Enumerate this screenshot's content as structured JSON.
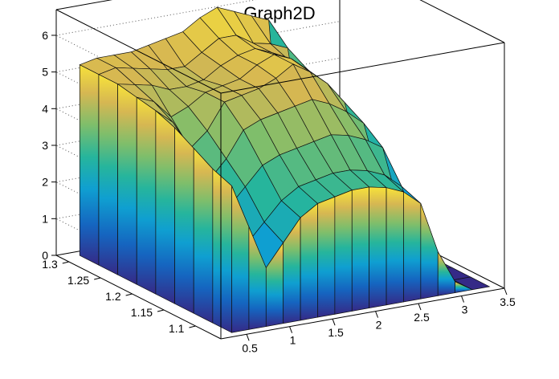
{
  "chart_data": {
    "type": "surface3d",
    "title": "Graph2D",
    "xlabel": "",
    "ylabel": "",
    "zlabel": "",
    "xlim": [
      0.2,
      3.5
    ],
    "ylim": [
      1.06,
      1.32
    ],
    "zlim": [
      0,
      6.7
    ],
    "x_ticks": [
      "0.5",
      "1",
      "1.5",
      "2",
      "2.5",
      "3",
      "3.5"
    ],
    "y_ticks": [
      "1.1",
      "1.15",
      "1.2",
      "1.25",
      "1.3"
    ],
    "z_ticks": [
      "0",
      "1",
      "2",
      "3",
      "4",
      "5",
      "6"
    ],
    "grid": true,
    "palette": [
      "#352a87",
      "#1565c0",
      "#0f9fd1",
      "#26b59c",
      "#7ebe6b",
      "#d6b752",
      "#f7e23a"
    ],
    "surface_z_rows_by_y": [
      {
        "y": 1.31,
        "z": [
          5.2,
          5.3,
          5.3,
          5.3,
          5.4,
          5.5,
          5.6,
          5.9,
          6.1,
          5.9,
          5.7,
          5.5,
          0.0,
          0.0,
          0.0,
          0.0
        ]
      },
      {
        "y": 1.28,
        "z": [
          5.2,
          5.3,
          5.2,
          5.1,
          5.0,
          5.0,
          5.3,
          5.6,
          5.6,
          5.3,
          5.2,
          5.0,
          2.0,
          0.0,
          0.0,
          0.0
        ]
      },
      {
        "y": 1.25,
        "z": [
          5.2,
          5.1,
          5.0,
          4.8,
          4.8,
          4.9,
          5.2,
          5.4,
          5.5,
          5.3,
          5.0,
          4.7,
          2.6,
          1.5,
          0.0,
          0.0
        ]
      },
      {
        "y": 1.22,
        "z": [
          5.1,
          4.9,
          4.4,
          4.6,
          4.9,
          5.0,
          5.1,
          5.4,
          5.6,
          5.4,
          5.0,
          4.5,
          2.6,
          2.0,
          0.0,
          0.0
        ]
      },
      {
        "y": 1.19,
        "z": [
          5.0,
          4.6,
          3.8,
          4.2,
          4.9,
          5.0,
          5.1,
          5.3,
          5.6,
          5.3,
          4.9,
          4.3,
          2.4,
          1.8,
          0.0,
          0.0
        ]
      },
      {
        "y": 1.16,
        "z": [
          4.8,
          4.1,
          3.2,
          3.7,
          4.4,
          4.6,
          4.7,
          4.8,
          4.9,
          4.7,
          4.4,
          4.0,
          2.2,
          1.5,
          0.0,
          0.0
        ]
      },
      {
        "y": 1.13,
        "z": [
          4.5,
          3.6,
          2.7,
          3.2,
          3.7,
          3.9,
          4.0,
          4.1,
          4.2,
          4.1,
          3.9,
          3.6,
          1.8,
          1.0,
          0.0,
          0.0
        ]
      },
      {
        "y": 1.1,
        "z": [
          4.2,
          3.0,
          2.0,
          2.5,
          3.0,
          3.3,
          3.4,
          3.5,
          3.5,
          3.4,
          3.2,
          2.8,
          1.4,
          0.5,
          0.0,
          0.0
        ]
      },
      {
        "y": 1.07,
        "z": [
          4.0,
          2.8,
          1.6,
          2.2,
          2.8,
          3.1,
          3.2,
          3.3,
          3.3,
          3.2,
          3.0,
          2.6,
          1.2,
          0.3,
          0.0,
          0.0
        ]
      }
    ],
    "surface_x": [
      0.4,
      0.6,
      0.8,
      1.0,
      1.2,
      1.4,
      1.6,
      1.8,
      2.0,
      2.2,
      2.4,
      2.6,
      2.8,
      3.0,
      3.2,
      3.4
    ]
  }
}
